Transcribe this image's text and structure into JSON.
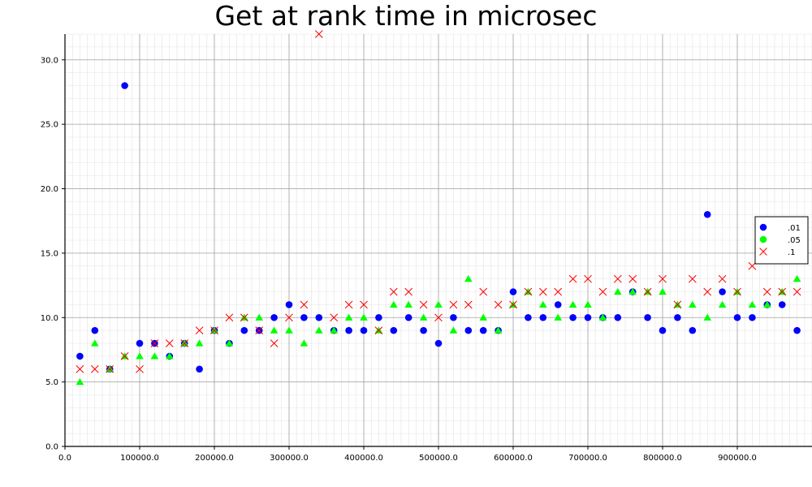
{
  "chart_data": {
    "type": "scatter",
    "title": "Get at rank time in microsec",
    "xlabel": "",
    "ylabel": "",
    "xlim": [
      0,
      1000000
    ],
    "ylim": [
      0,
      32
    ],
    "x_ticks": [
      "0.0",
      "100000.0",
      "200000.0",
      "300000.0",
      "400000.0",
      "500000.0",
      "600000.0",
      "700000.0",
      "800000.0",
      "900000.0"
    ],
    "y_ticks": [
      "0.0",
      "5.0",
      "10.0",
      "15.0",
      "20.0",
      "25.0",
      "30.0"
    ],
    "grid": true,
    "legend_position": "right",
    "x": [
      20000,
      40000,
      60000,
      80000,
      100000,
      120000,
      140000,
      160000,
      180000,
      200000,
      220000,
      240000,
      260000,
      280000,
      300000,
      320000,
      340000,
      360000,
      380000,
      400000,
      420000,
      440000,
      460000,
      480000,
      500000,
      520000,
      540000,
      560000,
      580000,
      600000,
      620000,
      640000,
      660000,
      680000,
      700000,
      720000,
      740000,
      760000,
      780000,
      800000,
      820000,
      840000,
      860000,
      880000,
      900000,
      920000,
      940000,
      960000,
      980000
    ],
    "series": [
      {
        "name": ".01",
        "color": "#0000ff",
        "marker": "circle",
        "values": [
          7,
          9,
          6,
          28,
          8,
          8,
          7,
          8,
          6,
          9,
          8,
          9,
          9,
          10,
          11,
          10,
          10,
          9,
          9,
          9,
          10,
          9,
          10,
          9,
          8,
          10,
          9,
          9,
          9,
          12,
          10,
          10,
          11,
          10,
          10,
          10,
          10,
          12,
          10,
          9,
          10,
          9,
          18,
          12,
          10,
          10,
          11,
          11,
          9
        ]
      },
      {
        "name": ".05",
        "color": "#00ff00",
        "marker": "triangle",
        "values": [
          5,
          8,
          6,
          7,
          7,
          7,
          7,
          8,
          8,
          9,
          8,
          10,
          10,
          9,
          9,
          8,
          9,
          9,
          10,
          10,
          9,
          11,
          11,
          10,
          11,
          9,
          13,
          10,
          9,
          11,
          12,
          11,
          10,
          11,
          11,
          10,
          12,
          12,
          12,
          12,
          11,
          11,
          10,
          11,
          12,
          11,
          11,
          12,
          13
        ]
      },
      {
        "name": ".1",
        "color": "#ff0000",
        "marker": "x",
        "values": [
          6,
          6,
          6,
          7,
          6,
          8,
          8,
          8,
          9,
          9,
          10,
          10,
          9,
          8,
          10,
          11,
          32,
          10,
          11,
          11,
          9,
          12,
          12,
          11,
          10,
          11,
          11,
          12,
          11,
          11,
          12,
          12,
          12,
          13,
          13,
          12,
          13,
          13,
          12,
          13,
          11,
          13,
          12,
          13,
          12,
          14,
          12,
          12,
          12
        ]
      }
    ]
  }
}
